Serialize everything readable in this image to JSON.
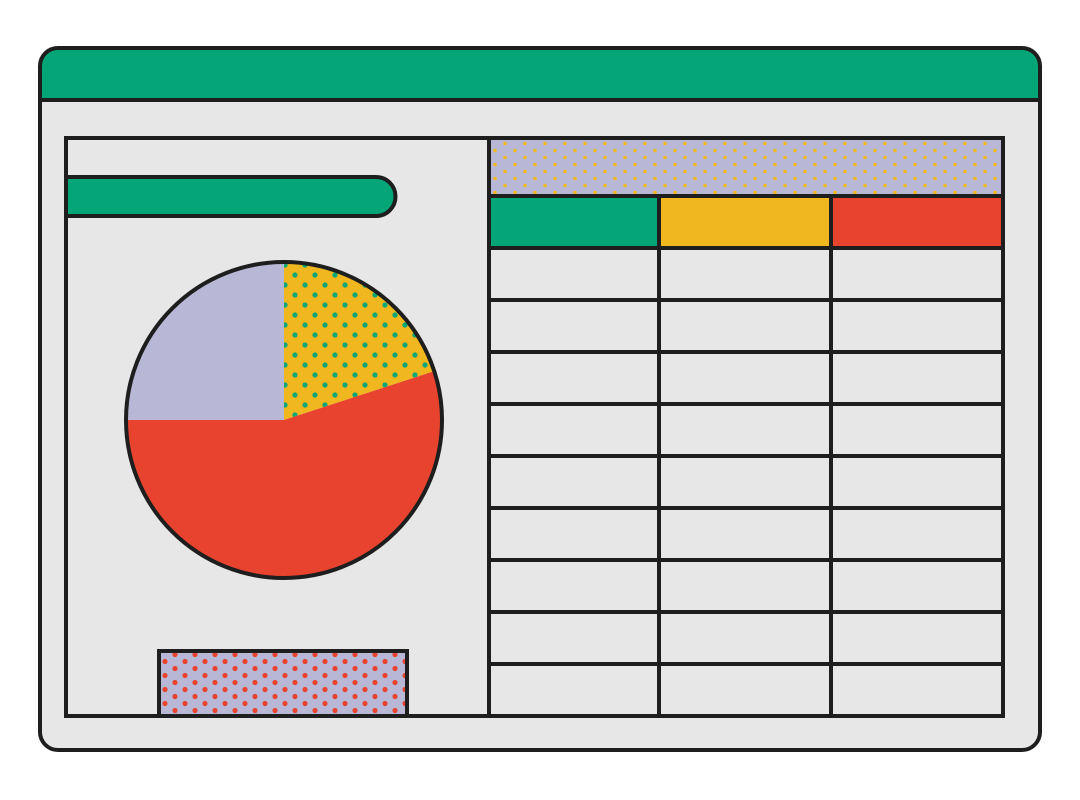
{
  "colors": {
    "outline": "#1e1e1e",
    "window_bg": "#e6e7e6",
    "green": "#04a678",
    "yellow": "#f0b71f",
    "red": "#e8432f",
    "lavender": "#b8b8d6"
  },
  "table": {
    "columns": 3,
    "body_rows": 9,
    "header_colors": [
      "#04a678",
      "#f0b71f",
      "#e8432f"
    ]
  },
  "chart_data": {
    "type": "pie",
    "slices": [
      {
        "value": 20,
        "color": "#f0b71f",
        "pattern": "dots-green"
      },
      {
        "value": 55,
        "color": "#e8432f"
      },
      {
        "value": 25,
        "color": "#b8b8d6"
      }
    ]
  }
}
